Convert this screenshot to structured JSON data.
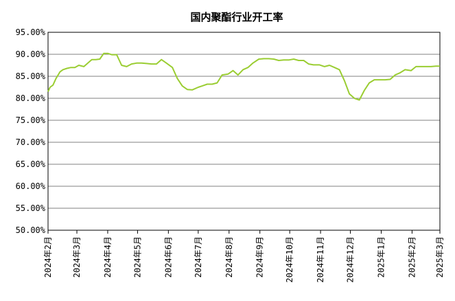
{
  "chart_data": {
    "type": "line",
    "title": "国内聚酯行业开工率",
    "xlabel": "",
    "ylabel": "",
    "ylim": [
      50,
      95
    ],
    "y_ticks": [
      "95.00%",
      "90.00%",
      "85.00%",
      "80.00%",
      "75.00%",
      "70.00%",
      "65.00%",
      "60.00%",
      "55.00%",
      "50.00%"
    ],
    "x_ticks": [
      "2024年2月",
      "2024年3月",
      "2024年4月",
      "2024年5月",
      "2024年6月",
      "2024年7月",
      "2024年8月",
      "2024年9月",
      "2024年10月",
      "2024年11月",
      "2024年12月",
      "2025年1月",
      "2025年2月",
      "2025年3月"
    ],
    "grid": true,
    "legend": "none",
    "colors": {
      "line": "#9acd32",
      "grid": "#808080",
      "axis": "#000000"
    },
    "x": [
      "2024-02-01",
      "2024-02-03",
      "2024-02-06",
      "2024-02-09",
      "2024-02-13",
      "2024-02-16",
      "2024-02-20",
      "2024-02-24",
      "2024-02-28",
      "2024-03-03",
      "2024-03-08",
      "2024-03-12",
      "2024-03-16",
      "2024-03-20",
      "2024-03-24",
      "2024-03-28",
      "2024-04-01",
      "2024-04-05",
      "2024-04-10",
      "2024-04-15",
      "2024-04-20",
      "2024-04-25",
      "2024-04-30",
      "2024-05-05",
      "2024-05-10",
      "2024-05-15",
      "2024-05-20",
      "2024-05-25",
      "2024-05-30",
      "2024-06-05",
      "2024-06-10",
      "2024-06-15",
      "2024-06-20",
      "2024-06-25",
      "2024-07-01",
      "2024-07-05",
      "2024-07-10",
      "2024-07-15",
      "2024-07-20",
      "2024-07-25",
      "2024-07-31",
      "2024-08-05",
      "2024-08-10",
      "2024-08-15",
      "2024-08-20",
      "2024-08-25",
      "2024-08-31",
      "2024-09-05",
      "2024-09-10",
      "2024-09-15",
      "2024-09-20",
      "2024-09-25",
      "2024-09-30",
      "2024-10-05",
      "2024-10-10",
      "2024-10-15",
      "2024-10-20",
      "2024-10-25",
      "2024-10-31",
      "2024-11-05",
      "2024-11-10",
      "2024-11-15",
      "2024-11-20",
      "2024-11-25",
      "2024-11-30",
      "2024-12-05",
      "2024-12-10",
      "2024-12-15",
      "2024-12-20",
      "2024-12-25",
      "2024-12-31",
      "2025-01-05",
      "2025-01-10",
      "2025-01-15",
      "2025-01-20",
      "2025-01-25",
      "2025-01-31",
      "2025-02-05",
      "2025-02-10",
      "2025-02-15",
      "2025-02-20",
      "2025-02-25",
      "2025-03-01"
    ],
    "series": [
      {
        "values": [
          81.5,
          82.5,
          83.0,
          84.5,
          86.0,
          86.5,
          86.8,
          87.0,
          87.0,
          87.5,
          87.2,
          88.0,
          88.8,
          88.8,
          88.9,
          90.2,
          90.2,
          89.9,
          89.9,
          87.5,
          87.2,
          87.8,
          88.0,
          88.0,
          87.9,
          87.8,
          87.8,
          88.8,
          88.0,
          87.0,
          84.5,
          82.8,
          82.0,
          81.9,
          82.5,
          82.8,
          83.2,
          83.2,
          83.5,
          85.3,
          85.5,
          86.3,
          85.3,
          86.5,
          87.0,
          88.0,
          88.9,
          89.0,
          89.0,
          88.9,
          88.6,
          88.7,
          88.7,
          88.9,
          88.6,
          88.6,
          87.8,
          87.6,
          87.6,
          87.2,
          87.5,
          87.0,
          86.5,
          84.0,
          81.0,
          80.0,
          79.6,
          81.8,
          83.5,
          84.2,
          84.2,
          84.2,
          84.3,
          85.3,
          85.8,
          86.5,
          86.3,
          87.2,
          87.2,
          87.2,
          87.2,
          87.3,
          87.3
        ],
        "color": "#9acd32"
      }
    ]
  }
}
